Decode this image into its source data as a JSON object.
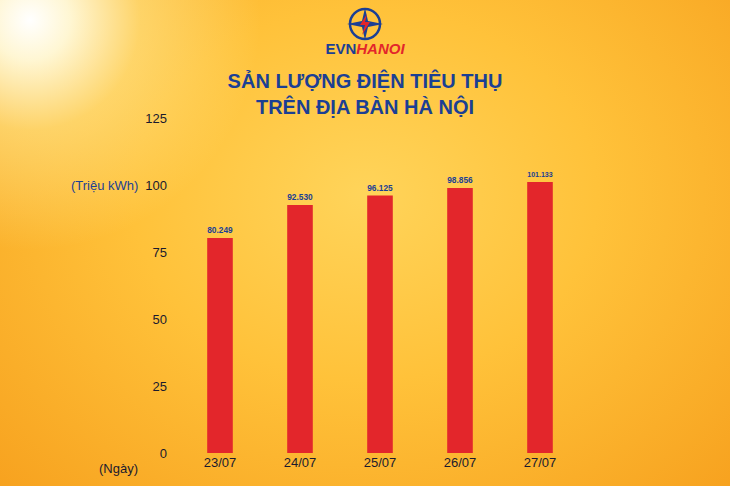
{
  "brand": [
    "EVN",
    "HANOI"
  ],
  "chart_data": {
    "type": "bar",
    "title": [
      "SẢN LƯỢNG ĐIỆN TIÊU THỤ",
      "TRÊN ĐỊA BÀN HÀ NỘI"
    ],
    "y_label": "(Triệu kWh)",
    "x_label": "(Ngày)",
    "categories": [
      "23/07",
      "24/07",
      "25/07",
      "26/07",
      "27/07"
    ],
    "values": [
      80.249,
      92.53,
      96.125,
      98.856,
      101.133
    ],
    "value_labels": [
      "80.249",
      "92.530",
      "96.125",
      "98.856",
      "101.133"
    ],
    "color": "#e3262b",
    "ylim": [
      0,
      125
    ],
    "yticks": [
      0,
      25,
      50,
      75,
      100,
      125
    ],
    "grid": false,
    "data_labels": true
  }
}
